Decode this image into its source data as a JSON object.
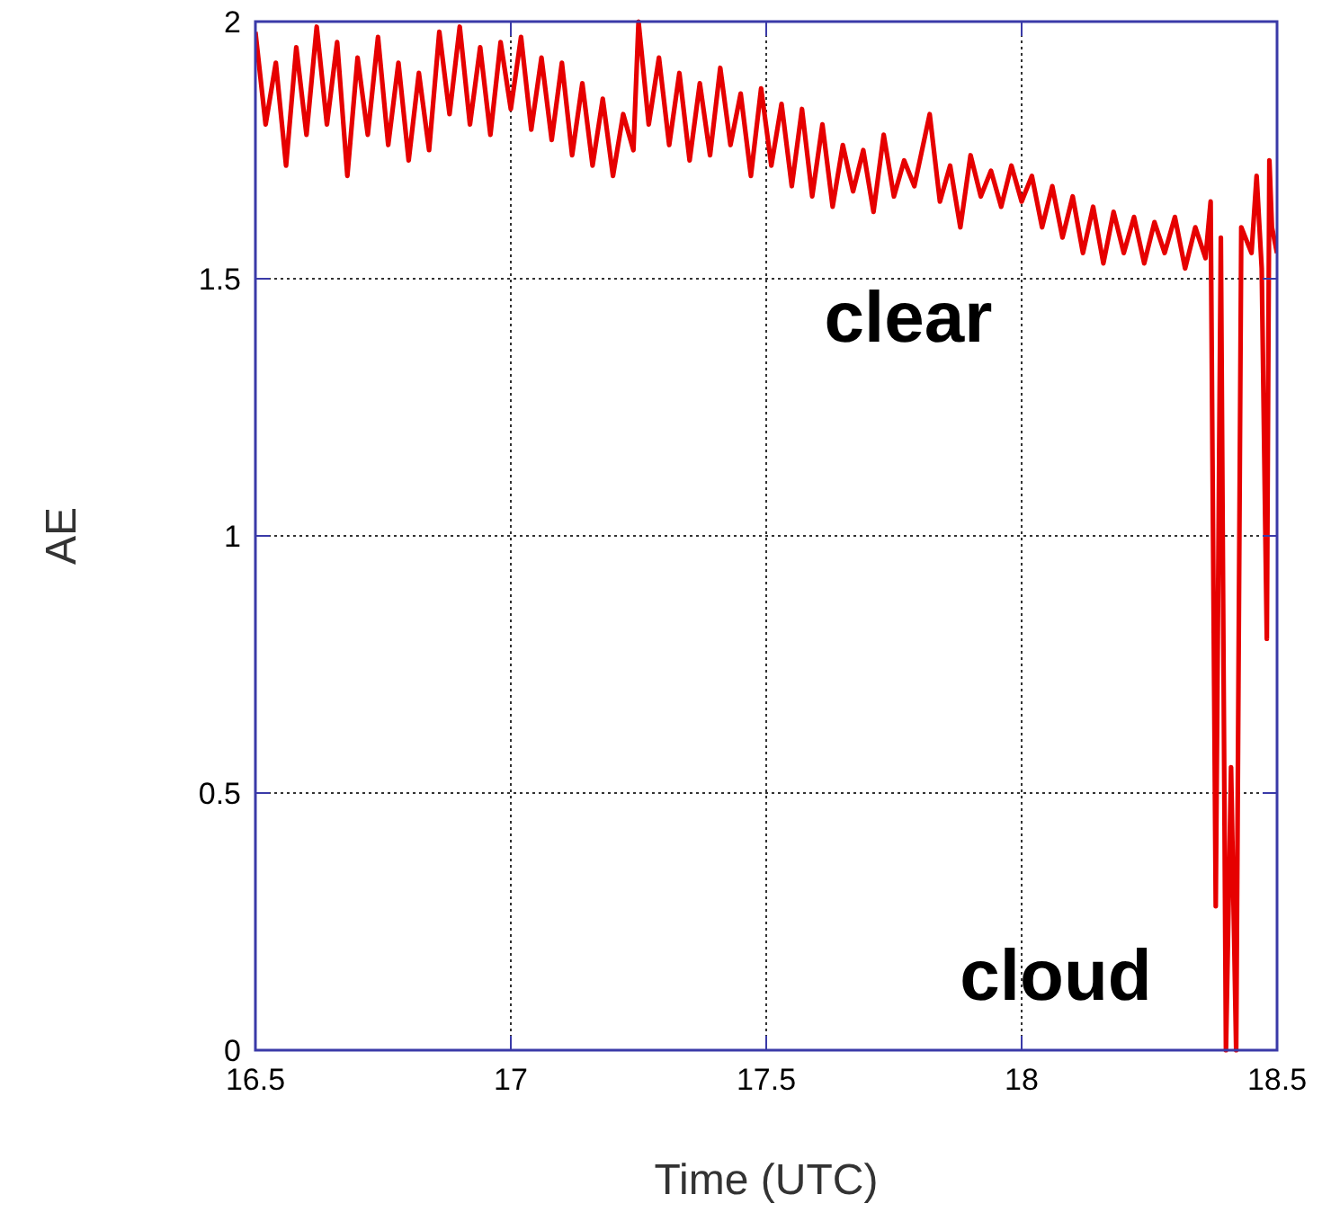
{
  "chart_data": {
    "type": "line",
    "xlabel": "Time (UTC)",
    "ylabel": "AE",
    "xlim": [
      16.5,
      18.5
    ],
    "xticks": [
      16.5,
      17,
      17.5,
      18,
      18.5
    ],
    "ylim": [
      0,
      2
    ],
    "yticks": [
      0,
      0.5,
      1,
      1.5,
      2
    ],
    "grid": true,
    "line_style": "solid",
    "marker": "none",
    "annotations": [
      "clear",
      "cloud"
    ],
    "series": [
      {
        "color": "#e60000",
        "x": [
          16.5,
          16.52,
          16.54,
          16.56,
          16.58,
          16.6,
          16.62,
          16.64,
          16.66,
          16.68,
          16.7,
          16.72,
          16.74,
          16.76,
          16.78,
          16.8,
          16.82,
          16.84,
          16.86,
          16.88,
          16.9,
          16.92,
          16.94,
          16.96,
          16.98,
          17,
          17.02,
          17.04,
          17.06,
          17.08,
          17.1,
          17.12,
          17.14,
          17.16,
          17.18,
          17.2,
          17.22,
          17.24,
          17.25,
          17.27,
          17.29,
          17.31,
          17.33,
          17.35,
          17.37,
          17.39,
          17.41,
          17.43,
          17.45,
          17.47,
          17.49,
          17.51,
          17.53,
          17.55,
          17.57,
          17.59,
          17.61,
          17.63,
          17.65,
          17.67,
          17.69,
          17.71,
          17.73,
          17.75,
          17.77,
          17.79,
          17.82,
          17.84,
          17.86,
          17.88,
          17.9,
          17.92,
          17.94,
          17.96,
          17.98,
          18,
          18.02,
          18.04,
          18.06,
          18.08,
          18.1,
          18.12,
          18.14,
          18.16,
          18.18,
          18.2,
          18.22,
          18.24,
          18.26,
          18.28,
          18.3,
          18.32,
          18.34,
          18.36,
          18.37,
          18.38,
          18.39,
          18.4,
          18.41,
          18.42,
          18.43,
          18.45,
          18.46,
          18.47,
          18.48,
          18.485,
          18.49,
          18.5
        ],
        "values": [
          1.98,
          1.8,
          1.92,
          1.72,
          1.95,
          1.78,
          1.99,
          1.8,
          1.96,
          1.7,
          1.93,
          1.78,
          1.97,
          1.76,
          1.92,
          1.73,
          1.9,
          1.75,
          1.98,
          1.82,
          1.99,
          1.8,
          1.95,
          1.78,
          1.96,
          1.83,
          1.97,
          1.79,
          1.93,
          1.77,
          1.92,
          1.74,
          1.88,
          1.72,
          1.85,
          1.7,
          1.82,
          1.75,
          2,
          1.8,
          1.93,
          1.76,
          1.9,
          1.73,
          1.88,
          1.74,
          1.91,
          1.76,
          1.86,
          1.7,
          1.87,
          1.72,
          1.84,
          1.68,
          1.83,
          1.66,
          1.8,
          1.64,
          1.76,
          1.67,
          1.75,
          1.63,
          1.78,
          1.66,
          1.73,
          1.68,
          1.82,
          1.65,
          1.72,
          1.6,
          1.74,
          1.66,
          1.71,
          1.64,
          1.72,
          1.65,
          1.7,
          1.6,
          1.68,
          1.58,
          1.66,
          1.55,
          1.64,
          1.53,
          1.63,
          1.55,
          1.62,
          1.53,
          1.61,
          1.55,
          1.62,
          1.52,
          1.6,
          1.54,
          1.65,
          0.28,
          1.58,
          0,
          0.55,
          0,
          1.6,
          1.55,
          1.7,
          1.52,
          0.8,
          1.73,
          1.6,
          1.55
        ]
      }
    ]
  }
}
